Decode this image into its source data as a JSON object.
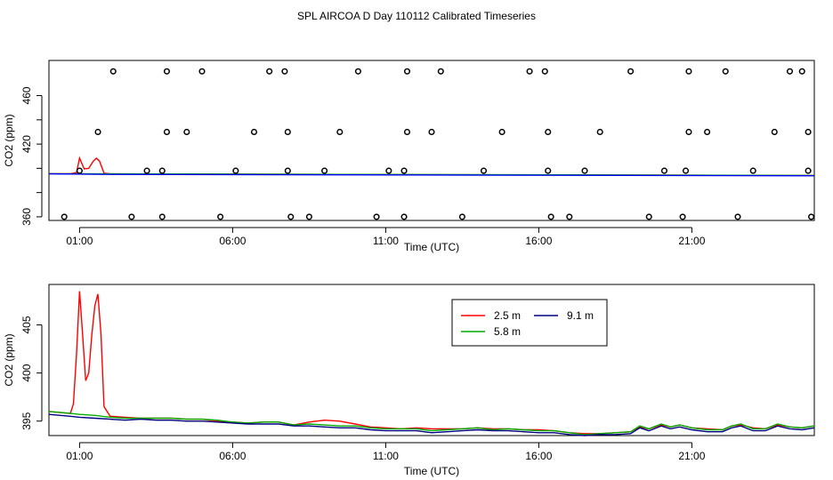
{
  "title": "SPL AIRCOA D  Day 110112  Calibrated Timeseries",
  "chart_data": [
    {
      "type": "line",
      "xlabel": "Time (UTC)",
      "ylabel": "CO2 (ppm)",
      "xlim_hours": [
        -1.0,
        24.0
      ],
      "ylim": [
        357,
        489
      ],
      "xticks": [
        {
          "hour": 0,
          "label": "01:00"
        },
        {
          "hour": 5,
          "label": "06:00"
        },
        {
          "hour": 10,
          "label": "11:00"
        },
        {
          "hour": 15,
          "label": "16:00"
        },
        {
          "hour": 20,
          "label": "21:00"
        }
      ],
      "yticks": [
        360,
        380,
        400,
        420,
        440,
        460
      ],
      "ytick_labels": [
        "360",
        "",
        "",
        "420",
        "",
        "460"
      ],
      "grid": false,
      "series": [
        {
          "color": "#ff0000",
          "x": [
            -1.0,
            -0.3,
            -0.1,
            0.0,
            0.15,
            0.3,
            0.45,
            0.55,
            0.65,
            0.8,
            1.0,
            24.0
          ],
          "y": [
            395.6,
            395.6,
            396.5,
            408.5,
            399.5,
            400.0,
            406.0,
            408.3,
            406.0,
            396.0,
            395.4,
            394.0
          ]
        },
        {
          "color": "#00aa00",
          "x": [
            -1.0,
            24.0
          ],
          "y": [
            395.6,
            394.1
          ]
        },
        {
          "color": "#0000ff",
          "x": [
            -1.0,
            1.0,
            24.0
          ],
          "y": [
            395.4,
            395.0,
            393.9
          ]
        }
      ],
      "markers": {
        "type": "open-circle",
        "points": [
          [
            -0.5,
            360
          ],
          [
            0.0,
            398
          ],
          [
            0.6,
            430
          ],
          [
            1.1,
            480
          ],
          [
            2.2,
            398
          ],
          [
            1.7,
            360
          ],
          [
            2.7,
            398
          ],
          [
            2.7,
            360
          ],
          [
            2.85,
            430
          ],
          [
            2.85,
            480
          ],
          [
            3.5,
            430
          ],
          [
            4.0,
            480
          ],
          [
            4.6,
            360
          ],
          [
            5.1,
            398
          ],
          [
            5.7,
            430
          ],
          [
            6.2,
            480
          ],
          [
            6.7,
            480
          ],
          [
            6.8,
            430
          ],
          [
            6.8,
            398
          ],
          [
            6.9,
            360
          ],
          [
            7.5,
            360
          ],
          [
            8.0,
            398
          ],
          [
            8.5,
            430
          ],
          [
            9.1,
            480
          ],
          [
            9.7,
            360
          ],
          [
            10.1,
            398
          ],
          [
            10.6,
            398
          ],
          [
            10.7,
            430
          ],
          [
            10.7,
            480
          ],
          [
            10.6,
            360
          ],
          [
            11.5,
            430
          ],
          [
            11.8,
            480
          ],
          [
            12.5,
            360
          ],
          [
            13.2,
            398
          ],
          [
            13.8,
            430
          ],
          [
            14.7,
            480
          ],
          [
            15.2,
            480
          ],
          [
            15.3,
            430
          ],
          [
            15.3,
            398
          ],
          [
            15.4,
            360
          ],
          [
            16.0,
            360
          ],
          [
            16.5,
            398
          ],
          [
            17.0,
            430
          ],
          [
            18.0,
            480
          ],
          [
            18.6,
            360
          ],
          [
            19.1,
            398
          ],
          [
            19.8,
            398
          ],
          [
            19.9,
            430
          ],
          [
            19.9,
            480
          ],
          [
            19.7,
            360
          ],
          [
            20.5,
            430
          ],
          [
            21.1,
            480
          ],
          [
            21.5,
            360
          ],
          [
            22.0,
            398
          ],
          [
            22.7,
            430
          ],
          [
            23.2,
            480
          ],
          [
            23.6,
            480
          ],
          [
            23.8,
            430
          ],
          [
            23.8,
            398
          ],
          [
            23.9,
            360
          ]
        ]
      }
    },
    {
      "type": "line",
      "xlabel": "Time (UTC)",
      "ylabel": "CO2 (ppm)",
      "xlim_hours": [
        -1.0,
        24.0
      ],
      "ylim": [
        393.5,
        409.2
      ],
      "xticks": [
        {
          "hour": 0,
          "label": "01:00"
        },
        {
          "hour": 5,
          "label": "06:00"
        },
        {
          "hour": 10,
          "label": "11:00"
        },
        {
          "hour": 15,
          "label": "16:00"
        },
        {
          "hour": 20,
          "label": "21:00"
        }
      ],
      "yticks": [
        395,
        400,
        405
      ],
      "grid": false,
      "legend": {
        "position": "top-right"
      },
      "series": [
        {
          "name": "2.5 m",
          "color": "#ff0000",
          "x": [
            -1.0,
            -0.3,
            -0.2,
            -0.1,
            0.0,
            0.1,
            0.2,
            0.3,
            0.4,
            0.5,
            0.6,
            0.7,
            0.8,
            1.0,
            1.5,
            2.0,
            2.5,
            3.0,
            3.5,
            4.0,
            4.5,
            5.0,
            5.5,
            6.0,
            6.5,
            7.0,
            7.5,
            8.0,
            8.5,
            9.0,
            9.5,
            10.0,
            10.5,
            11.0,
            11.5,
            12.0,
            12.5,
            13.0,
            13.5,
            14.0,
            14.5,
            15.0,
            15.5,
            16.0,
            16.5,
            17.0,
            17.5,
            18.0,
            18.3,
            18.6,
            19.0,
            19.3,
            19.6,
            20.0,
            20.5,
            21.0,
            21.3,
            21.6,
            22.0,
            22.4,
            22.8,
            23.2,
            23.6,
            24.0
          ],
          "y": [
            396.0,
            395.8,
            396.8,
            402.0,
            408.5,
            404.0,
            399.2,
            400.0,
            404.0,
            407.0,
            408.2,
            404.0,
            396.5,
            395.5,
            395.4,
            395.3,
            395.3,
            395.3,
            395.2,
            395.2,
            395.0,
            394.9,
            394.8,
            394.9,
            394.9,
            394.6,
            394.9,
            395.1,
            395.0,
            394.7,
            394.4,
            394.3,
            394.2,
            394.3,
            394.2,
            394.2,
            394.2,
            394.3,
            394.2,
            394.2,
            394.1,
            394.1,
            394.0,
            393.8,
            393.7,
            393.7,
            393.8,
            393.9,
            394.4,
            394.2,
            394.6,
            394.4,
            394.6,
            394.3,
            394.2,
            394.1,
            394.5,
            394.6,
            394.3,
            394.2,
            394.6,
            394.4,
            394.3,
            394.5
          ]
        },
        {
          "name": "5.8 m",
          "color": "#00aa00",
          "x": [
            -1.0,
            -0.3,
            0.0,
            0.5,
            1.0,
            1.5,
            2.0,
            2.5,
            3.0,
            3.5,
            4.0,
            4.5,
            5.0,
            5.5,
            6.0,
            6.5,
            7.0,
            7.5,
            8.0,
            8.5,
            9.0,
            9.5,
            10.0,
            10.5,
            11.0,
            11.5,
            12.0,
            12.5,
            13.0,
            13.5,
            14.0,
            14.5,
            15.0,
            15.5,
            16.0,
            16.5,
            17.0,
            17.5,
            18.0,
            18.3,
            18.6,
            19.0,
            19.3,
            19.6,
            20.0,
            20.5,
            21.0,
            21.3,
            21.6,
            22.0,
            22.4,
            22.8,
            23.2,
            23.6,
            24.0
          ],
          "y": [
            396.0,
            395.8,
            395.7,
            395.6,
            395.4,
            395.3,
            395.3,
            395.3,
            395.3,
            395.2,
            395.2,
            395.1,
            394.9,
            394.8,
            394.9,
            394.9,
            394.6,
            394.7,
            394.6,
            394.5,
            394.5,
            394.3,
            394.2,
            394.2,
            394.2,
            394.0,
            394.1,
            394.2,
            394.3,
            394.1,
            394.2,
            394.1,
            394.0,
            394.0,
            393.8,
            393.6,
            393.7,
            393.8,
            393.9,
            394.5,
            394.2,
            394.7,
            394.4,
            394.6,
            394.3,
            394.1,
            394.1,
            394.5,
            394.7,
            394.2,
            394.2,
            394.7,
            394.4,
            394.3,
            394.5
          ]
        },
        {
          "name": "9.1 m",
          "color": "#000080",
          "x": [
            -1.0,
            -0.3,
            0.0,
            0.5,
            1.0,
            1.5,
            2.0,
            2.5,
            3.0,
            3.5,
            4.0,
            4.5,
            5.0,
            5.5,
            6.0,
            6.5,
            7.0,
            7.5,
            8.0,
            8.5,
            9.0,
            9.5,
            10.0,
            10.5,
            11.0,
            11.5,
            12.0,
            12.5,
            13.0,
            13.5,
            14.0,
            14.5,
            15.0,
            15.5,
            16.0,
            16.5,
            17.0,
            17.5,
            18.0,
            18.3,
            18.6,
            19.0,
            19.3,
            19.6,
            20.0,
            20.5,
            21.0,
            21.3,
            21.6,
            22.0,
            22.4,
            22.8,
            23.2,
            23.6,
            24.0
          ],
          "y": [
            395.7,
            395.5,
            395.4,
            395.3,
            395.2,
            395.1,
            395.2,
            395.1,
            395.1,
            395.0,
            395.0,
            394.9,
            394.8,
            394.7,
            394.7,
            394.7,
            394.5,
            394.5,
            394.4,
            394.3,
            394.3,
            394.1,
            394.0,
            394.0,
            394.0,
            393.8,
            393.9,
            394.0,
            394.1,
            394.0,
            394.0,
            393.9,
            393.8,
            393.8,
            393.6,
            393.5,
            393.6,
            393.6,
            393.7,
            394.3,
            394.0,
            394.5,
            394.2,
            394.4,
            394.1,
            393.9,
            393.9,
            394.3,
            394.5,
            394.0,
            394.0,
            394.5,
            394.2,
            394.1,
            394.3
          ]
        }
      ]
    }
  ]
}
